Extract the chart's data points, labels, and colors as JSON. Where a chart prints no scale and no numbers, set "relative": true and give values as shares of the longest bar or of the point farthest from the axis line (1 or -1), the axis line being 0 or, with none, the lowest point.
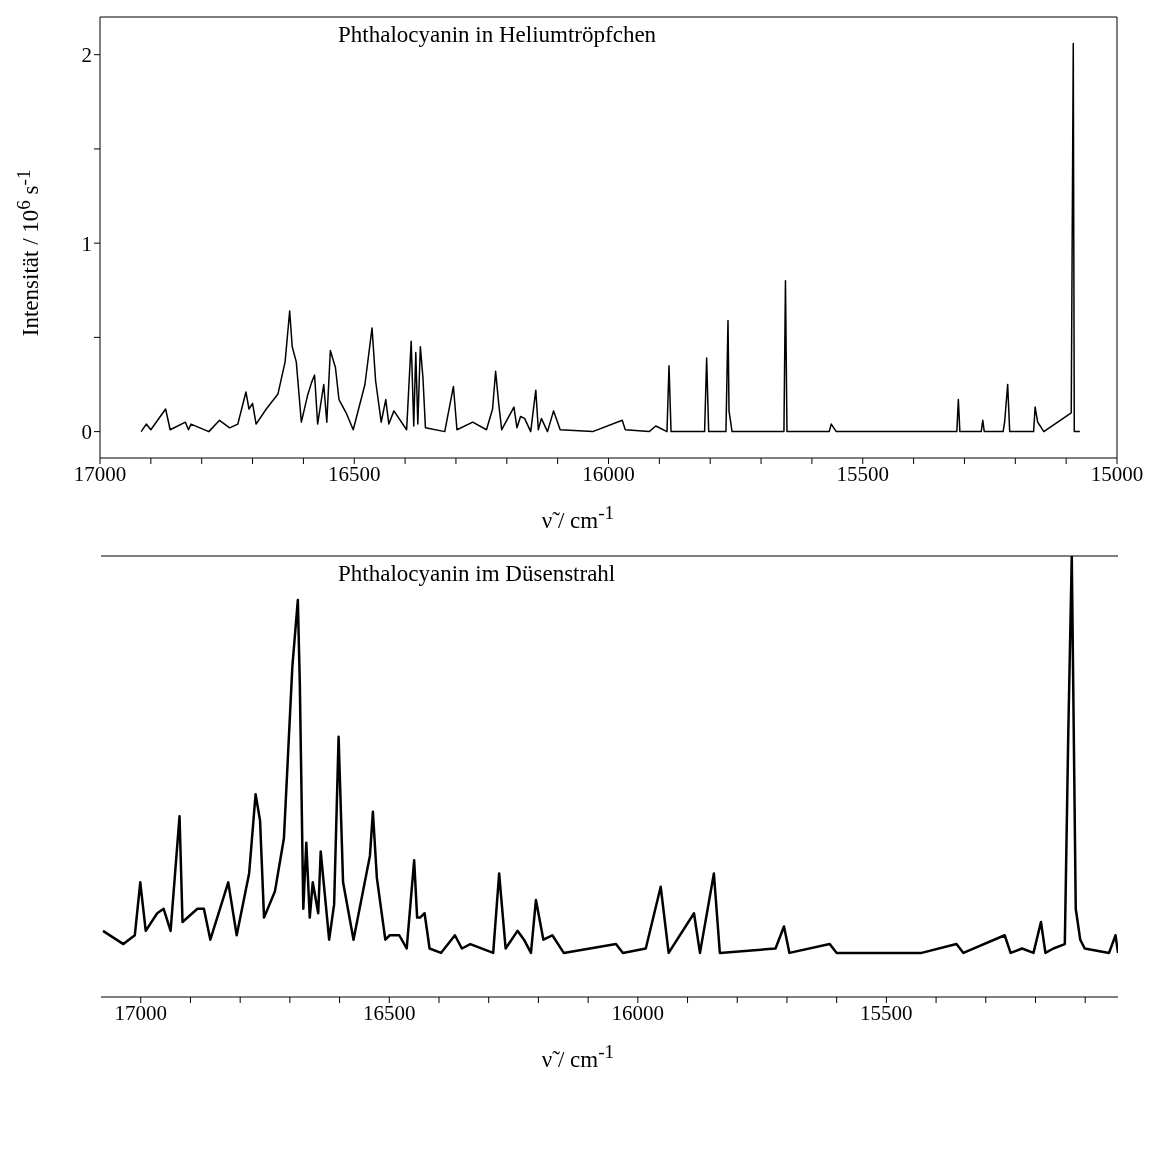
{
  "chart_data": [
    {
      "type": "line",
      "title": "Phthalocyanin in Heliumtröpfchen",
      "xlabel": "ν̃ / cm$^{-1}$",
      "ylabel": "Intensität / 10$^{6}$ s$^{-1}$",
      "xlim": [
        17000,
        15000
      ],
      "ylim": [
        -0.14,
        2.2
      ],
      "xticks": [
        17000,
        {
          "value": 16900,
          "label": null
        },
        {
          "value": 16800,
          "label": null
        },
        {
          "value": 16700,
          "label": null
        },
        {
          "value": 16600,
          "label": null
        },
        16500,
        {
          "value": 16400,
          "label": null
        },
        {
          "value": 16300,
          "label": null
        },
        {
          "value": 16200,
          "label": null
        },
        {
          "value": 16100,
          "label": null
        },
        16000,
        {
          "value": 15900,
          "label": null
        },
        {
          "value": 15800,
          "label": null
        },
        {
          "value": 15700,
          "label": null
        },
        {
          "value": 15600,
          "label": null
        },
        15500,
        {
          "value": 15400,
          "label": null
        },
        {
          "value": 15300,
          "label": null
        },
        {
          "value": 15200,
          "label": null
        },
        {
          "value": 15100,
          "label": null
        },
        15000
      ],
      "yticks": [
        0,
        {
          "value": 0.5,
          "label": null
        },
        1,
        {
          "value": 1.5,
          "label": null
        },
        2
      ],
      "series": [
        {
          "color": "#000000",
          "x": [
            16919,
            16909,
            16900,
            16871,
            16862,
            16832,
            16826,
            16821,
            16786,
            16765,
            16745,
            16729,
            16713,
            16707,
            16700,
            16693,
            16673,
            16650,
            16636,
            16627,
            16622,
            16614,
            16604,
            16592,
            16584,
            16578,
            16572,
            16560,
            16554,
            16547,
            16537,
            16530,
            16516,
            16502,
            16479,
            16465,
            16458,
            16447,
            16438,
            16432,
            16422,
            16397,
            16388,
            16383,
            16379,
            16375,
            16370,
            16365,
            16360,
            16322,
            16305,
            16298,
            16267,
            16240,
            16228,
            16222,
            16216,
            16210,
            16186,
            16180,
            16173,
            16165,
            16153,
            16143,
            16138,
            16132,
            16120,
            16108,
            16095,
            16031,
            15973,
            15967,
            15920,
            15907,
            15885,
            15881,
            15877,
            15811,
            15807,
            15803,
            15769,
            15765,
            15763,
            15757,
            15688,
            15655,
            15652,
            15649,
            15566,
            15562,
            15552,
            15389,
            15315,
            15312,
            15309,
            15267,
            15264,
            15261,
            15224,
            15221,
            15215,
            15211,
            15164,
            15161,
            15156,
            15151,
            15144,
            15090,
            15086,
            15084,
            15073
          ],
          "values": [
            0,
            0.04,
            0.01,
            0.12,
            0.01,
            0.05,
            0.01,
            0.04,
            0,
            0.06,
            0.02,
            0.04,
            0.21,
            0.12,
            0.15,
            0.04,
            0.12,
            0.2,
            0.37,
            0.64,
            0.45,
            0.37,
            0.05,
            0.19,
            0.26,
            0.3,
            0.04,
            0.25,
            0.05,
            0.43,
            0.34,
            0.17,
            0.1,
            0.01,
            0.25,
            0.55,
            0.27,
            0.05,
            0.17,
            0.04,
            0.11,
            0.01,
            0.48,
            0.03,
            0.42,
            0.04,
            0.45,
            0.29,
            0.02,
            0,
            0.24,
            0.01,
            0.05,
            0.01,
            0.12,
            0.32,
            0.15,
            0.01,
            0.13,
            0.02,
            0.08,
            0.07,
            0,
            0.22,
            0.01,
            0.07,
            0,
            0.11,
            0.01,
            0,
            0.06,
            0.01,
            0,
            0.03,
            0,
            0.35,
            0,
            0,
            0.39,
            0,
            0,
            0.59,
            0.11,
            0,
            0,
            0,
            0.8,
            0,
            0,
            0.04,
            0,
            0,
            0,
            0.17,
            0,
            0,
            0.06,
            0,
            0,
            0.05,
            0.25,
            0,
            0,
            0.13,
            0.05,
            0.03,
            0,
            0.1,
            2.06,
            0,
            0
          ]
        }
      ]
    },
    {
      "type": "line",
      "title": "Phthalocyanin im Düsenstrahl",
      "xlabel": "ν̃ / cm$^{-1}$",
      "relative": true,
      "xlim": [
        17080,
        15034
      ],
      "xticks": [
        17000,
        {
          "value": 16900,
          "label": null
        },
        {
          "value": 16800,
          "label": null
        },
        {
          "value": 16700,
          "label": null
        },
        {
          "value": 16600,
          "label": null
        },
        16500,
        {
          "value": 16400,
          "label": null
        },
        {
          "value": 16300,
          "label": null
        },
        {
          "value": 16200,
          "label": null
        },
        {
          "value": 16100,
          "label": null
        },
        16000,
        {
          "value": 15900,
          "label": null
        },
        {
          "value": 15800,
          "label": null
        },
        {
          "value": 15700,
          "label": null
        },
        {
          "value": 15600,
          "label": null
        },
        15500,
        {
          "value": 15400,
          "label": null
        },
        {
          "value": 15300,
          "label": null
        },
        {
          "value": 15200,
          "label": null
        },
        {
          "value": 15100,
          "label": null
        }
      ],
      "series": [
        {
          "color": "#000000",
          "x": [
            17076,
            17035,
            17012,
            17001,
            16990,
            16967,
            16954,
            16940,
            16922,
            16916,
            16886,
            16873,
            16860,
            16824,
            16807,
            16782,
            16769,
            16760,
            16752,
            16730,
            16712,
            16695,
            16684,
            16680,
            16673,
            16667,
            16660,
            16654,
            16643,
            16638,
            16621,
            16611,
            16602,
            16593,
            16572,
            16539,
            16533,
            16525,
            16508,
            16499,
            16480,
            16465,
            16450,
            16444,
            16438,
            16429,
            16419,
            16396,
            16368,
            16354,
            16337,
            16291,
            16279,
            16266,
            16242,
            16229,
            16215,
            16205,
            16190,
            16172,
            16149,
            16044,
            16030,
            15984,
            15954,
            15938,
            15887,
            15875,
            15847,
            15835,
            15723,
            15706,
            15695,
            15614,
            15600,
            15429,
            15359,
            15345,
            15262,
            15250,
            15227,
            15204,
            15189,
            15180,
            15164,
            15141,
            15134,
            15127,
            15122,
            15119,
            15110,
            15101,
            15052,
            15039,
            15034
          ],
          "values": [
            0.15,
            0.12,
            0.14,
            0.26,
            0.15,
            0.19,
            0.2,
            0.15,
            0.41,
            0.17,
            0.2,
            0.2,
            0.13,
            0.26,
            0.14,
            0.28,
            0.46,
            0.4,
            0.18,
            0.24,
            0.36,
            0.75,
            0.9,
            0.71,
            0.2,
            0.35,
            0.18,
            0.26,
            0.19,
            0.33,
            0.13,
            0.21,
            0.59,
            0.26,
            0.13,
            0.32,
            0.42,
            0.27,
            0.13,
            0.14,
            0.14,
            0.11,
            0.31,
            0.18,
            0.18,
            0.19,
            0.11,
            0.1,
            0.14,
            0.11,
            0.12,
            0.1,
            0.28,
            0.11,
            0.15,
            0.13,
            0.1,
            0.22,
            0.13,
            0.14,
            0.1,
            0.12,
            0.1,
            0.11,
            0.25,
            0.1,
            0.19,
            0.1,
            0.28,
            0.1,
            0.11,
            0.16,
            0.1,
            0.12,
            0.1,
            0.1,
            0.12,
            0.1,
            0.14,
            0.1,
            0.11,
            0.1,
            0.17,
            0.1,
            0.11,
            0.12,
            0.6,
            1,
            0.5,
            0.2,
            0.13,
            0.11,
            0.1,
            0.14,
            0.1
          ]
        }
      ]
    }
  ]
}
